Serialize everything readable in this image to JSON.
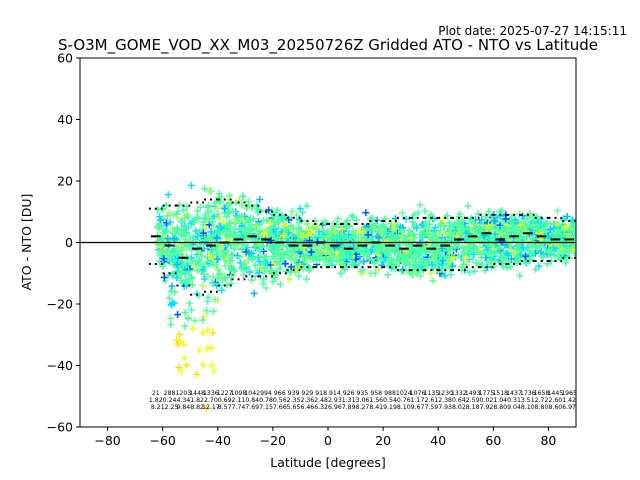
{
  "chart_data": {
    "type": "scatter",
    "title": "S-O3M_GOME_VOD_XX_M03_20250726Z Gridded ATO - NTO vs Latitude",
    "subtitle": "Plot date: 2025-07-27 14:15:11",
    "xlabel": "Latitude [degrees]",
    "ylabel": "ATO - NTO [DU]",
    "xlim": [
      -90,
      90
    ],
    "ylim": [
      -60,
      60
    ],
    "xticks": [
      "−80",
      "−60",
      "−40",
      "−20",
      "0",
      "20",
      "40",
      "60",
      "80"
    ],
    "yticks": [
      "−60",
      "−40",
      "−20",
      "0",
      "20",
      "40",
      "60"
    ],
    "grid": false,
    "zero_line": 0,
    "marker": "+",
    "point_colors": [
      "#00b8ff",
      "#00e0ff",
      "#66ff99",
      "#49fca6",
      "#b7ff4a",
      "#f0ff10",
      "#ffe600",
      "#0050ff",
      "#1a1aff"
    ],
    "bins_lat": [
      -62.5,
      -57.5,
      -52.5,
      -47.5,
      -42.5,
      -37.5,
      -32.5,
      -27.5,
      -22.5,
      -17.5,
      -12.5,
      -7.5,
      -2.5,
      2.5,
      7.5,
      12.5,
      17.5,
      22.5,
      27.5,
      32.5,
      37.5,
      42.5,
      47.5,
      52.5,
      57.5,
      62.5,
      67.5,
      72.5,
      77.5,
      82.5,
      87.5
    ],
    "mean": [
      2,
      -1,
      -5,
      -2,
      -1,
      0,
      1,
      2,
      1,
      0,
      -1,
      -1,
      0,
      -1,
      -2,
      -1,
      0,
      -1,
      -2,
      -1,
      -2,
      -1,
      1,
      2,
      3,
      1,
      2,
      3,
      2,
      1,
      1
    ],
    "upper_std": [
      11,
      12,
      12,
      13,
      14,
      14,
      13,
      12,
      10,
      9,
      8,
      7,
      6,
      6,
      6,
      6,
      7,
      7,
      8,
      8,
      8,
      8,
      8,
      8,
      9,
      9,
      9,
      9,
      8,
      8,
      7
    ],
    "lower_std": [
      -7,
      -10,
      -14,
      -17,
      -16,
      -14,
      -12,
      -11,
      -11,
      -10,
      -9,
      -8,
      -8,
      -8,
      -8,
      -8,
      -8,
      -8,
      -9,
      -9,
      -9,
      -9,
      -9,
      -8,
      -8,
      -7,
      -7,
      -6,
      -6,
      -6,
      -5
    ],
    "ann_rows": [
      [
        "21",
        "288",
        "1203",
        "1448",
        "1336",
        "1227",
        "1098",
        "1042",
        "994",
        "966",
        "939",
        "929",
        "918",
        "914",
        "926",
        "935",
        "958",
        "988",
        "1024",
        "1076",
        "1135",
        "1230",
        "1332",
        "1493",
        "1775",
        "1518",
        "1437",
        "1736",
        "1658",
        "1445",
        "1965"
      ],
      [
        "1.82",
        "0.24",
        "4.34",
        "1.82",
        "2.70",
        "0.69",
        "2.11",
        "0.84",
        "0.78",
        "0.56",
        "2.35",
        "2.36",
        "2.48",
        "2.93",
        "1.31",
        "3.06",
        "1.56",
        "0.54",
        "0.76",
        "1.17",
        "2.61",
        "2.38",
        "0.64",
        "2.59",
        "0.02",
        "1.04",
        "0.31",
        "3.51",
        "2.72",
        "2.60",
        "1.42"
      ],
      [
        "8.2",
        "12.25",
        "9.84",
        "8.82",
        "12.17",
        "8.57",
        "7.74",
        "7.69",
        "7.15",
        "7.66",
        "5.65",
        "6.46",
        "6.32",
        "6.96",
        "7.89",
        "8.27",
        "8.41",
        "9.19",
        "8.10",
        "9.67",
        "7.59",
        "7.93",
        "8.02",
        "8.18",
        "7.92",
        "8.80",
        "9.04",
        "8.10",
        "8.80",
        "8.60",
        "6.97"
      ]
    ]
  }
}
